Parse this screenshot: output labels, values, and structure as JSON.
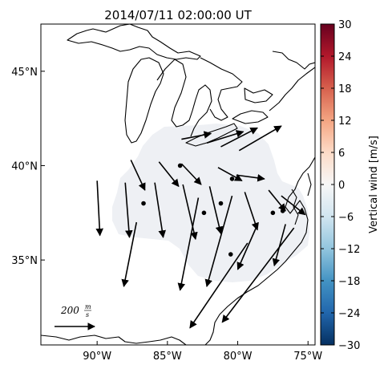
{
  "title": "2014/07/11 02:00:00 UT",
  "map": {
    "lon_range": [
      -94,
      -74.5
    ],
    "lat_range": [
      30.5,
      47.5
    ],
    "x_ticks": [
      {
        "lon": -90,
        "label": "90°W"
      },
      {
        "lon": -85,
        "label": "85°W"
      },
      {
        "lon": -80,
        "label": "80°W"
      },
      {
        "lon": -75,
        "label": "75°W"
      }
    ],
    "y_ticks": [
      {
        "lat": 45,
        "label": "45°N"
      },
      {
        "lat": 40,
        "label": "40°N"
      },
      {
        "lat": 35,
        "label": "35°N"
      }
    ],
    "coverage_color": "#eef0f4",
    "coastline_color": "#000000"
  },
  "colorbar": {
    "label": "Vertical wind [m/s]",
    "min": -30,
    "max": 30,
    "ticks": [
      30,
      24,
      18,
      12,
      6,
      0,
      -6,
      -12,
      -18,
      -24,
      -30
    ],
    "tick_labels": [
      "30",
      "24",
      "18",
      "12",
      "6",
      "0",
      "−6",
      "−12",
      "−18",
      "−24",
      "−30"
    ],
    "colormap": [
      "#053061",
      "#2166ac",
      "#4393c3",
      "#92c5de",
      "#d1e5f0",
      "#f7f7f7",
      "#fddbc7",
      "#f4a582",
      "#d6604d",
      "#b2182b",
      "#67001f"
    ]
  },
  "scale_key": {
    "value": "200",
    "unit_num": "m",
    "unit_den": "s"
  },
  "stations": [
    {
      "lon": -86.7,
      "lat": 38.0
    },
    {
      "lon": -84.1,
      "lat": 40.0
    },
    {
      "lon": -82.4,
      "lat": 37.5
    },
    {
      "lon": -81.2,
      "lat": 38.0
    },
    {
      "lon": -80.4,
      "lat": 39.3
    },
    {
      "lon": -80.5,
      "lat": 35.3
    },
    {
      "lon": -77.5,
      "lat": 37.5
    },
    {
      "lon": -76.8,
      "lat": 37.6
    }
  ],
  "wind_vectors": [
    {
      "lon0": -84.0,
      "lat0": 41.4,
      "lon1": -81.9,
      "lat1": 41.7
    },
    {
      "lon0": -82.2,
      "lat0": 41.2,
      "lon1": -79.6,
      "lat1": 41.8
    },
    {
      "lon0": -81.2,
      "lat0": 41.0,
      "lon1": -78.6,
      "lat1": 42.0
    },
    {
      "lon0": -79.9,
      "lat0": 40.8,
      "lon1": -76.9,
      "lat1": 42.1
    },
    {
      "lon0": -87.6,
      "lat0": 40.3,
      "lon1": -86.6,
      "lat1": 38.7
    },
    {
      "lon0": -85.6,
      "lat0": 40.2,
      "lon1": -84.2,
      "lat1": 38.9
    },
    {
      "lon0": -84.0,
      "lat0": 40.1,
      "lon1": -82.6,
      "lat1": 39.0
    },
    {
      "lon0": -81.4,
      "lat0": 39.9,
      "lon1": -79.7,
      "lat1": 39.2
    },
    {
      "lon0": -80.1,
      "lat0": 39.5,
      "lon1": -78.1,
      "lat1": 39.3
    },
    {
      "lon0": -90.0,
      "lat0": 39.2,
      "lon1": -89.8,
      "lat1": 36.3
    },
    {
      "lon0": -88.0,
      "lat0": 39.1,
      "lon1": -87.7,
      "lat1": 36.2
    },
    {
      "lon0": -85.9,
      "lat0": 39.1,
      "lon1": -85.3,
      "lat1": 36.2
    },
    {
      "lon0": -83.9,
      "lat0": 39.0,
      "lon1": -83.0,
      "lat1": 36.1
    },
    {
      "lon0": -82.0,
      "lat0": 38.9,
      "lon1": -81.2,
      "lat1": 36.4
    },
    {
      "lon0": -79.5,
      "lat0": 38.6,
      "lon1": -78.6,
      "lat1": 36.6
    },
    {
      "lon0": -76.9,
      "lat0": 38.4,
      "lon1": -75.2,
      "lat1": 37.4
    },
    {
      "lon0": -87.2,
      "lat0": 37.0,
      "lon1": -88.1,
      "lat1": 33.6
    },
    {
      "lon0": -82.8,
      "lat0": 38.3,
      "lon1": -84.1,
      "lat1": 33.4
    },
    {
      "lon0": -80.4,
      "lat0": 38.4,
      "lon1": -82.2,
      "lat1": 33.6
    },
    {
      "lon0": -78.7,
      "lat0": 36.7,
      "lon1": -80.0,
      "lat1": 34.5
    },
    {
      "lon0": -76.6,
      "lat0": 36.9,
      "lon1": -77.4,
      "lat1": 34.7
    },
    {
      "lon0": -77.8,
      "lat0": 38.7,
      "lon1": -76.6,
      "lat1": 37.6
    },
    {
      "lon0": -76.0,
      "lat0": 36.7,
      "lon1": -81.1,
      "lat1": 31.7
    },
    {
      "lon0": -79.3,
      "lat0": 35.9,
      "lon1": -83.4,
      "lat1": 31.4
    }
  ]
}
